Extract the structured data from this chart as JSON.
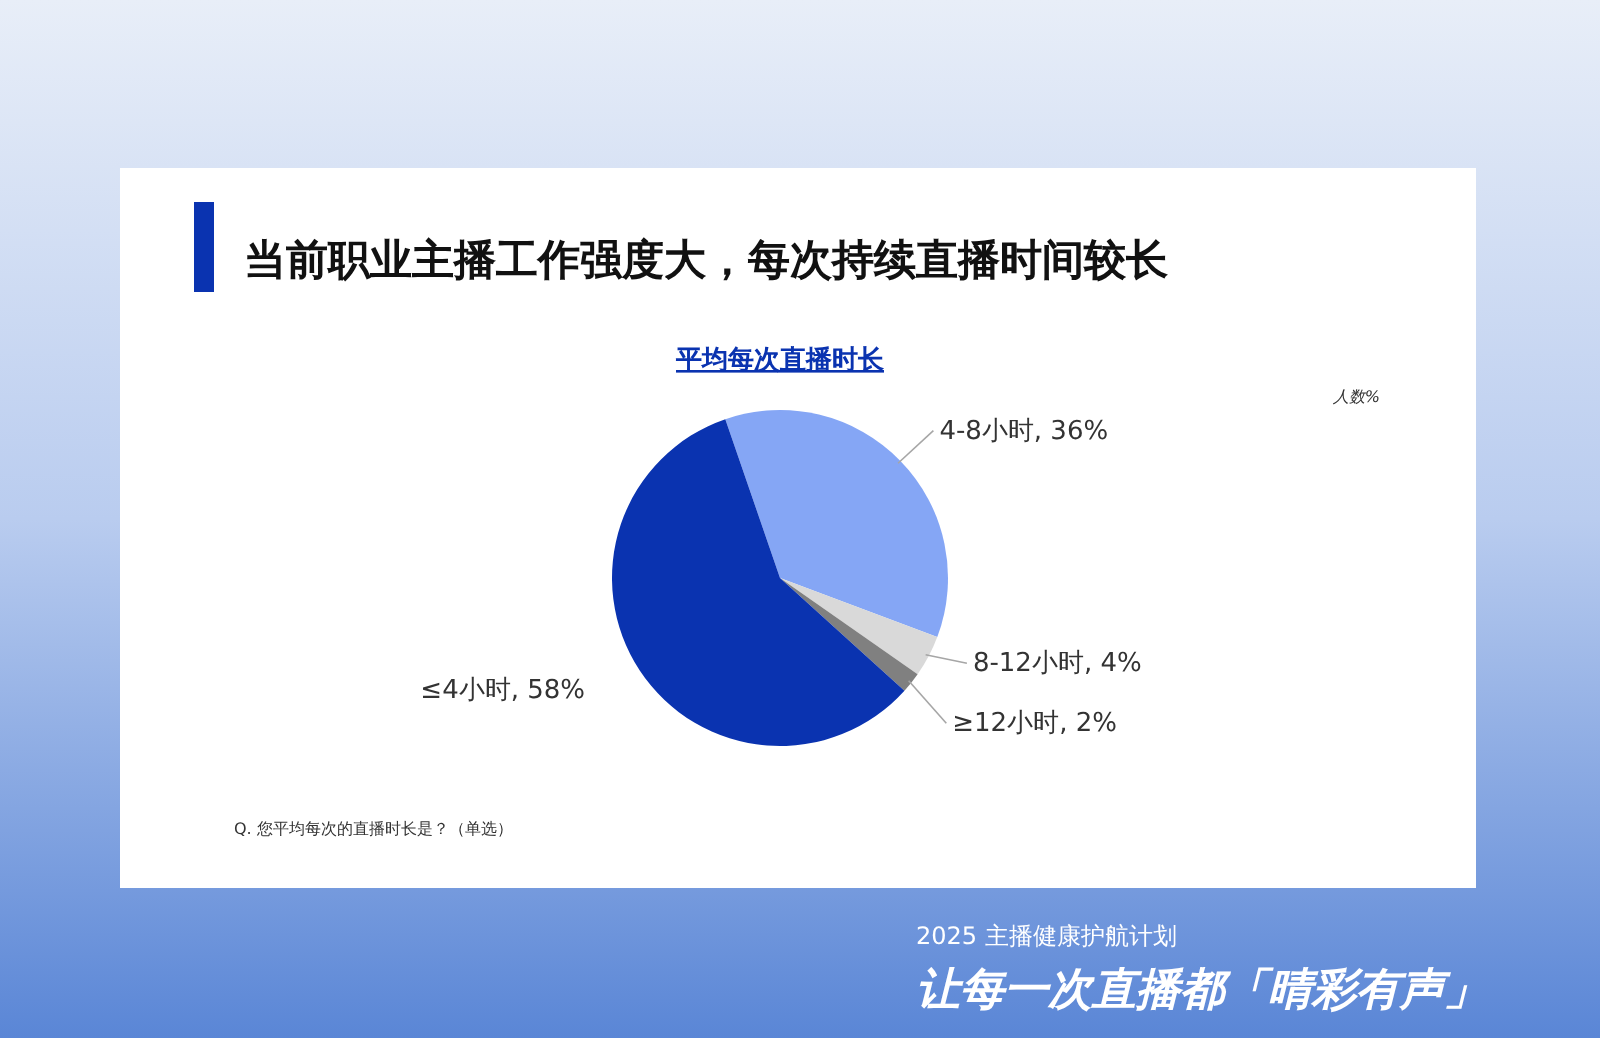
{
  "chart_data": {
    "type": "pie",
    "title": "当前职业主播工作强度大，每次持续直播时间较长",
    "subtitle": "平均每次直播时长",
    "categories": [
      "4-8小时",
      "8-12小时",
      "≥12小时",
      "≤4小时"
    ],
    "values": [
      36,
      4,
      2,
      58
    ],
    "value_labels": [
      "36%",
      "4%",
      "2%",
      "58%"
    ],
    "colors": [
      "#85a6f5",
      "#d9d9d9",
      "#808080",
      "#0a33b0"
    ],
    "annotations": [
      "人数%",
      "Q. 您平均每次的直播时长是？（单选）",
      "2025 主播健康护航计划",
      "让每一次直播都「晴彩有声」"
    ]
  }
}
